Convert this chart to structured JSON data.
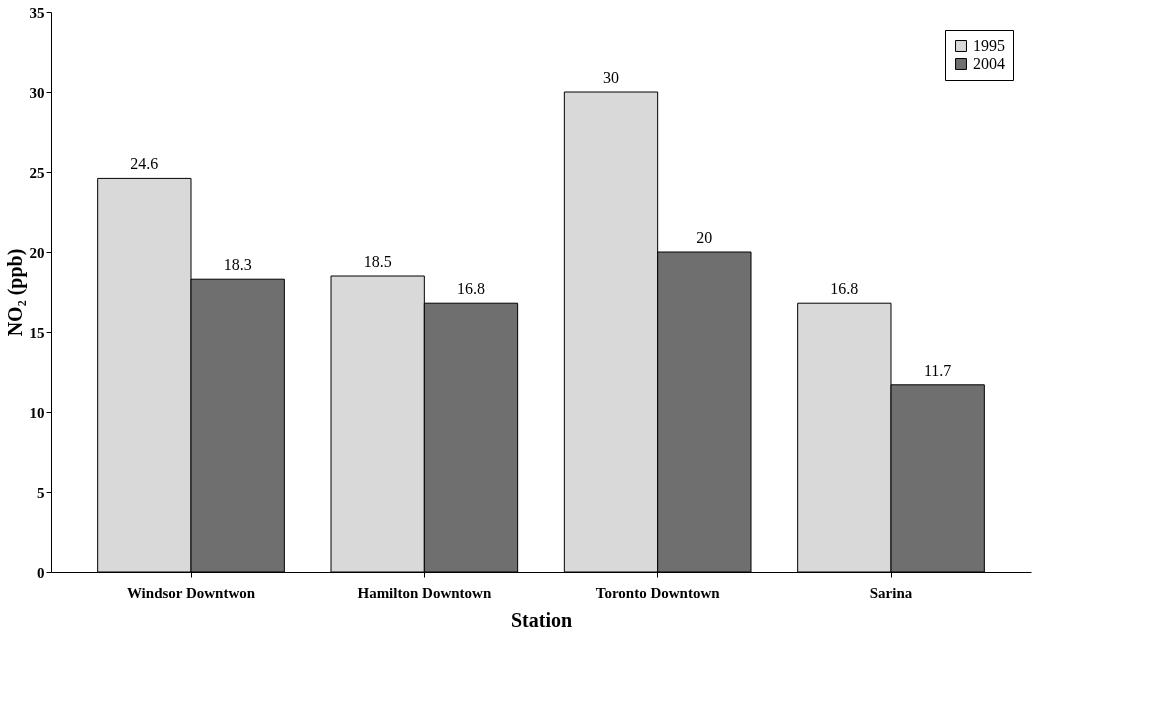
{
  "chart_data": {
    "type": "bar",
    "xlabel": "Station",
    "ylabel": "NO₂ (ppb)",
    "categories": [
      "Windsor Downtwon",
      "Hamilton Downtown",
      "Toronto Downtown",
      "Sarina"
    ],
    "series": [
      {
        "name": "1995",
        "color": "#d9d9d9",
        "values": [
          24.6,
          18.5,
          30,
          16.8
        ]
      },
      {
        "name": "2004",
        "color": "#6f6f6f",
        "values": [
          18.3,
          16.8,
          20,
          11.7
        ]
      }
    ],
    "ylim": [
      0,
      35
    ],
    "yticks": [
      0,
      5,
      10,
      15,
      20,
      25,
      30,
      35
    ],
    "grid": false,
    "legend": "top right",
    "data_labels": true
  }
}
